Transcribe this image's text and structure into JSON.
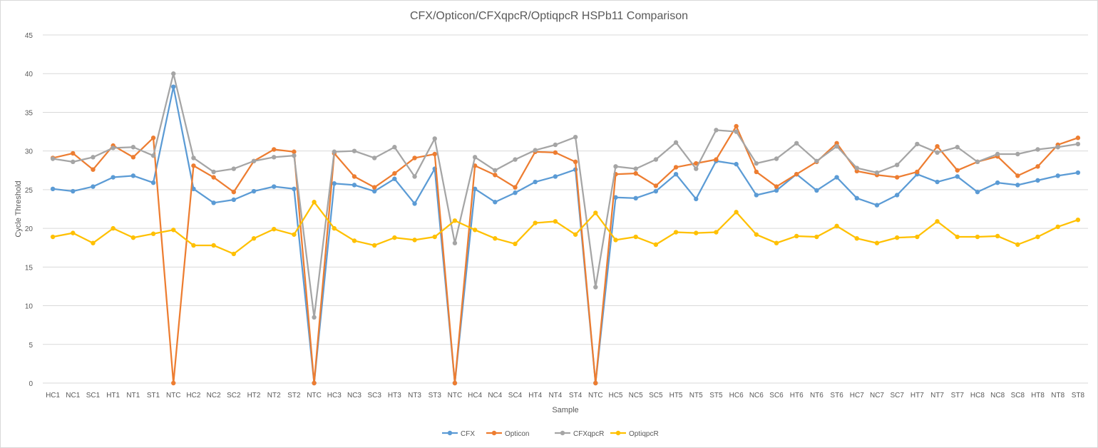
{
  "chart_data": {
    "type": "line",
    "title": "CFX/Opticon/CFXqpcR/OptiqpcR HSPb11 Comparison",
    "xlabel": "Sample",
    "ylabel": "Cycle Threshold",
    "ylim": [
      0,
      45
    ],
    "yticks": [
      0,
      5,
      10,
      15,
      20,
      25,
      30,
      35,
      40,
      45
    ],
    "grid": "horizontal",
    "legend_position": "bottom",
    "categories": [
      "HC1",
      "NC1",
      "SC1",
      "HT1",
      "NT1",
      "ST1",
      "NTC",
      "HC2",
      "NC2",
      "SC2",
      "HT2",
      "NT2",
      "ST2",
      "NTC",
      "HC3",
      "NC3",
      "SC3",
      "HT3",
      "NT3",
      "ST3",
      "NTC",
      "HC4",
      "NC4",
      "SC4",
      "HT4",
      "NT4",
      "ST4",
      "NTC",
      "HC5",
      "NC5",
      "SC5",
      "HT5",
      "NT5",
      "ST5",
      "HC6",
      "NC6",
      "SC6",
      "HT6",
      "NT6",
      "ST6",
      "HC7",
      "NC7",
      "SC7",
      "HT7",
      "NT7",
      "ST7",
      "HC8",
      "NC8",
      "SC8",
      "HT8",
      "NT8",
      "ST8"
    ],
    "series": [
      {
        "name": "CFX",
        "color": "#5B9BD5",
        "values": [
          25.1,
          24.8,
          25.4,
          26.6,
          26.8,
          25.9,
          38.3,
          25.1,
          23.3,
          23.7,
          24.8,
          25.4,
          25.1,
          0,
          25.8,
          25.6,
          24.8,
          26.4,
          23.2,
          27.7,
          0,
          25.1,
          23.4,
          24.6,
          26.0,
          26.7,
          27.6,
          0,
          24.0,
          23.9,
          24.8,
          27.0,
          23.8,
          28.7,
          28.3,
          24.3,
          24.9,
          27.0,
          24.9,
          26.6,
          23.9,
          23.0,
          24.3,
          27.0,
          26.0,
          26.7,
          24.7,
          25.9,
          25.6,
          26.2,
          26.8,
          27.2
        ]
      },
      {
        "name": "Opticon",
        "color": "#ED7D31",
        "values": [
          29.1,
          29.7,
          27.6,
          30.7,
          29.2,
          31.7,
          0,
          28.1,
          26.6,
          24.7,
          28.7,
          30.2,
          29.9,
          0,
          29.7,
          26.7,
          25.3,
          27.1,
          29.1,
          29.6,
          0,
          28.1,
          26.9,
          25.3,
          29.9,
          29.8,
          28.6,
          0,
          27.0,
          27.1,
          25.5,
          27.9,
          28.4,
          28.9,
          33.2,
          27.3,
          25.4,
          27.0,
          28.6,
          31.0,
          27.4,
          26.9,
          26.6,
          27.3,
          30.6,
          27.5,
          28.6,
          29.3,
          26.8,
          28.0,
          30.8,
          31.7
        ]
      },
      {
        "name": "CFXqpcR",
        "color": "#A5A5A5",
        "values": [
          29.0,
          28.6,
          29.2,
          30.4,
          30.5,
          29.4,
          40.0,
          29.1,
          27.3,
          27.7,
          28.7,
          29.2,
          29.4,
          8.5,
          29.9,
          30.0,
          29.1,
          30.5,
          26.7,
          31.6,
          18.1,
          29.2,
          27.5,
          28.9,
          30.1,
          30.8,
          31.8,
          12.4,
          28.0,
          27.7,
          28.9,
          31.1,
          27.7,
          32.7,
          32.5,
          28.4,
          29.0,
          31.0,
          28.7,
          30.6,
          27.8,
          27.2,
          28.2,
          30.9,
          29.8,
          30.5,
          28.6,
          29.6,
          29.6,
          30.2,
          30.5,
          30.9
        ]
      },
      {
        "name": "OptiqpcR",
        "color": "#FFC000",
        "values": [
          18.9,
          19.4,
          18.1,
          20.0,
          18.8,
          19.3,
          19.8,
          17.8,
          17.8,
          16.7,
          18.7,
          19.9,
          19.2,
          23.4,
          20.0,
          18.4,
          17.8,
          18.8,
          18.5,
          18.9,
          21.0,
          19.8,
          18.7,
          18.0,
          20.7,
          20.9,
          19.2,
          22.0,
          18.5,
          18.9,
          17.9,
          19.5,
          19.4,
          19.5,
          22.1,
          19.2,
          18.1,
          19.0,
          18.9,
          20.3,
          18.7,
          18.1,
          18.8,
          18.9,
          20.9,
          18.9,
          18.9,
          19.0,
          17.9,
          18.9,
          20.2,
          21.1
        ]
      }
    ]
  }
}
